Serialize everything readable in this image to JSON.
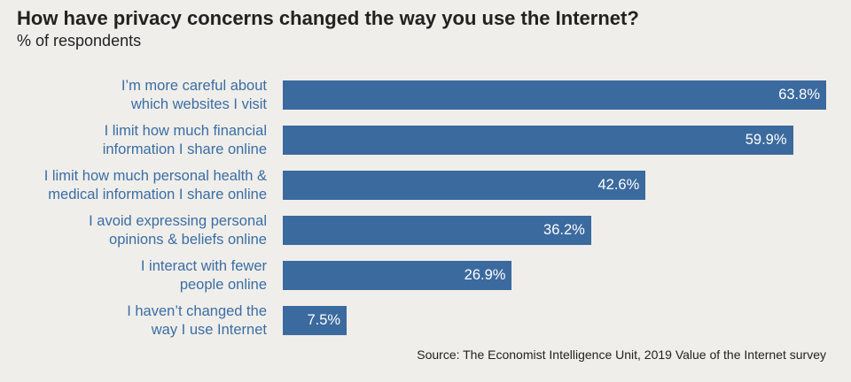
{
  "chart_data": {
    "type": "bar",
    "orientation": "horizontal",
    "title": "How have privacy concerns changed the way you use the Internet?",
    "subtitle": "% of respondents",
    "categories": [
      [
        "I’m more careful about",
        "which websites I visit"
      ],
      [
        "I limit how much financial",
        "information I share online"
      ],
      [
        "I limit how much personal health &",
        "medical information I share online"
      ],
      [
        "I avoid expressing personal",
        "opinions & beliefs online"
      ],
      [
        "I interact with fewer",
        "people online"
      ],
      [
        "I haven’t changed the",
        "way I use Internet"
      ]
    ],
    "values": [
      63.8,
      59.9,
      42.6,
      36.2,
      26.9,
      7.5
    ],
    "value_labels": [
      "63.8%",
      "59.9%",
      "42.6%",
      "36.2%",
      "26.9%",
      "7.5%"
    ],
    "xlim": [
      0,
      63.8
    ],
    "grid": false,
    "bar_color": "#3b6a9e",
    "label_color": "#3a6ea5",
    "source": "Source: The Economist Intelligence Unit, 2019 Value of the Internet survey"
  }
}
